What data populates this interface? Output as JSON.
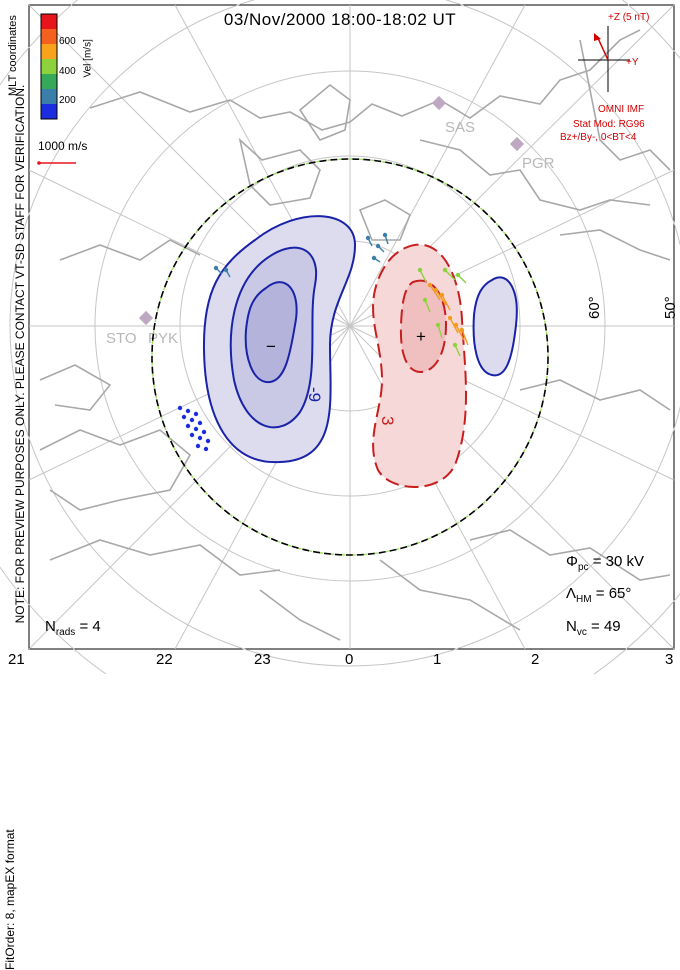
{
  "title": "03/Nov/2000 18:00-18:02 UT",
  "preview_note": "NOTE: FOR PREVIEW PURPOSES ONLY. PLEASE CONTACT VT-SD STAFF FOR VERIFICATION.",
  "fit_note": "FitOrder: 8,  mapEX format",
  "coordinates_label": "MLT coordinates",
  "colorbar": {
    "label": "Vel [m/s]",
    "ticks": [
      "600",
      "400",
      "200"
    ],
    "colors": [
      "#e8141c",
      "#f4601e",
      "#f9a21c",
      "#8dd23c",
      "#35a85a",
      "#3a7fa9",
      "#1c2de0"
    ]
  },
  "vector_scale_label": "1000 m/s",
  "imf": {
    "z_label": "+Z (5 nT)",
    "y_label": "+Y",
    "source": "OMNI IMF",
    "model": "Stat Mod: RG96",
    "condition": "Bz+/By-, 0<BT<4"
  },
  "stations": [
    "SAS",
    "PGR",
    "STO",
    "PYK"
  ],
  "latitude_labels": [
    "60°",
    "50°"
  ],
  "contours": {
    "negative_label": "-9",
    "positive_label": "3",
    "neg_center": "−",
    "pos_center": "+"
  },
  "stats": {
    "phi_pc_symbol": "Φ",
    "phi_pc_sub": "pc",
    "phi_pc_value": "= 30 kV",
    "lambda_symbol": "Λ",
    "lambda_sub": "HM",
    "lambda_value": "= 65°",
    "nvc_symbol": "N",
    "nvc_sub": "vc",
    "nvc_value": "= 49",
    "nrads_symbol": "N",
    "nrads_sub": "rads",
    "nrads_value": "= 4"
  },
  "mlt_hours": [
    "21",
    "22",
    "23",
    "0",
    "1",
    "2",
    "3"
  ],
  "colors": {
    "map_outline": "#b0b0b0",
    "grid": "#c0c0c0",
    "negative_fill": "#d9d9ee",
    "negative_line": "#1a22a8",
    "positive_fill": "#f5d6d6",
    "positive_line": "#c81e1e",
    "imf": "#d40000"
  }
}
